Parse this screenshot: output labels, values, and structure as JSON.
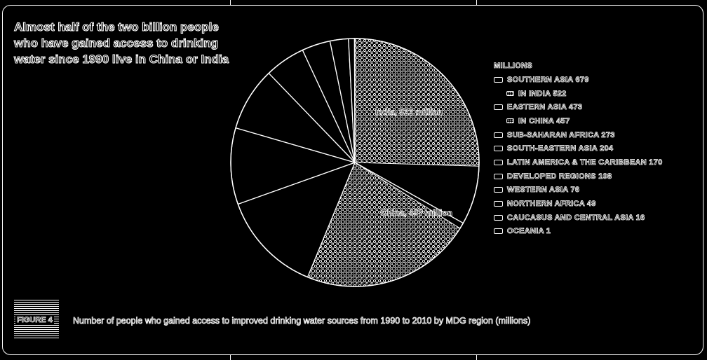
{
  "chart_data": {
    "type": "pie",
    "title": "Almost half of the two billion people who have gained access to drinking water since 1990 live in China or India",
    "legend_title": "MILLIONS",
    "legend_placement": "right",
    "slices": [
      {
        "name": "SOUTHERN ASIA",
        "value": 679,
        "highlight_name": "IN INDIA",
        "highlight_value": 522,
        "label": "India, 522 million"
      },
      {
        "name": "EASTERN ASIA",
        "value": 473,
        "highlight_name": "IN CHINA",
        "highlight_value": 457,
        "label": "China, 457 million"
      },
      {
        "name": "SUB-SAHARAN AFRICA",
        "value": 273
      },
      {
        "name": "SOUTH-EASTERN ASIA",
        "value": 204
      },
      {
        "name": "LATIN AMERICA & THE CARIBBEAN",
        "value": 170
      },
      {
        "name": "DEVELOPED REGIONS",
        "value": 108
      },
      {
        "name": "WESTERN ASIA",
        "value": 76
      },
      {
        "name": "NORTHERN AFRICA",
        "value": 49
      },
      {
        "name": "CAUCASUS AND CENTRAL ASIA",
        "value": 16
      },
      {
        "name": "OCEANIA",
        "value": 1
      }
    ],
    "legend": [
      {
        "text": "SOUTHERN ASIA 679",
        "swatch": "plain",
        "sub": false
      },
      {
        "text": "IN INDIA 522",
        "swatch": "dots",
        "sub": true
      },
      {
        "text": "EASTERN ASIA 473",
        "swatch": "plain",
        "sub": false
      },
      {
        "text": "IN CHINA 457",
        "swatch": "dots",
        "sub": true
      },
      {
        "text": "SUB-SAHARAN AFRICA 273",
        "swatch": "plain",
        "sub": false
      },
      {
        "text": "SOUTH-EASTERN ASIA 204",
        "swatch": "plain",
        "sub": false
      },
      {
        "text": "LATIN AMERICA & THE CARIBBEAN 170",
        "swatch": "plain",
        "sub": false
      },
      {
        "text": "DEVELOPED REGIONS 108",
        "swatch": "plain",
        "sub": false
      },
      {
        "text": "WESTERN ASIA 76",
        "swatch": "plain",
        "sub": false
      },
      {
        "text": "NORTHERN AFRICA 49",
        "swatch": "plain",
        "sub": false
      },
      {
        "text": "CAUCASUS AND CENTRAL ASIA 16",
        "swatch": "plain",
        "sub": false
      },
      {
        "text": "OCEANIA 1",
        "swatch": "plain",
        "sub": false
      }
    ]
  },
  "figure_label": "FIGURE 4",
  "caption": "Number of people who gained access to improved drinking water sources from 1990 to 2010 by MDG region (millions)",
  "colors": {
    "background": "#000000",
    "line": "#ffffff"
  }
}
